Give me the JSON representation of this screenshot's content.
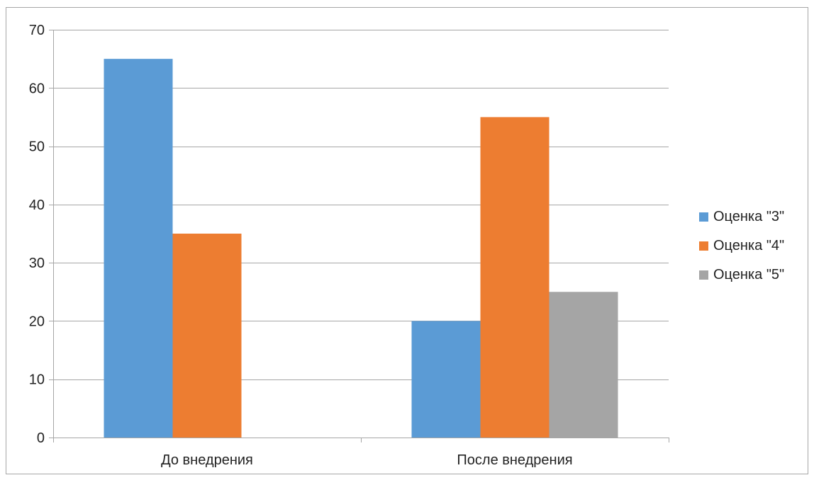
{
  "chart_data": {
    "type": "bar",
    "categories": [
      "До внедрения",
      "После внедрения"
    ],
    "series": [
      {
        "name": "Оценка \"3\"",
        "values": [
          65,
          20
        ],
        "color": "#5b9bd5"
      },
      {
        "name": "Оценка \"4\"",
        "values": [
          35,
          55
        ],
        "color": "#ed7d31"
      },
      {
        "name": "Оценка \"5\"",
        "values": [
          0,
          25
        ],
        "color": "#a5a5a5"
      }
    ],
    "ylim": [
      0,
      70
    ],
    "yticks": [
      0,
      10,
      20,
      30,
      40,
      50,
      60,
      70
    ],
    "grid": true,
    "legend": "right"
  }
}
